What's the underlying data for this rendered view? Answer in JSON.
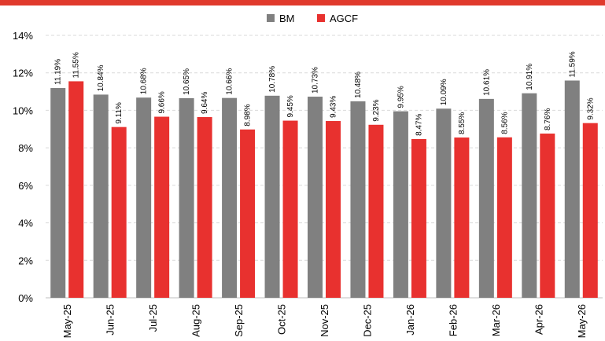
{
  "colors": {
    "top_bar": "#e03a2c",
    "bm": "#808080",
    "agcf": "#e8312f",
    "grid": "#d9d9d9",
    "axis": "#bfbfbf"
  },
  "chart_data": {
    "type": "bar",
    "title": "",
    "xlabel": "",
    "ylabel": "",
    "ylim": [
      0,
      14
    ],
    "yticks": [
      0,
      2,
      4,
      6,
      8,
      10,
      12,
      14
    ],
    "ytick_labels": [
      "0%",
      "2%",
      "4%",
      "6%",
      "8%",
      "10%",
      "12%",
      "14%"
    ],
    "grid": true,
    "legend": "top-center",
    "categories": [
      "May-25",
      "Jun-25",
      "Jul-25",
      "Aug-25",
      "Sep-25",
      "Oct-25",
      "Nov-25",
      "Dec-25",
      "Jan-26",
      "Feb-26",
      "Mar-26",
      "Apr-26",
      "May-26"
    ],
    "series": [
      {
        "name": "BM",
        "values": [
          11.19,
          10.84,
          10.68,
          10.65,
          10.66,
          10.78,
          10.73,
          10.48,
          9.95,
          10.09,
          10.61,
          10.91,
          11.59
        ],
        "labels": [
          "11.19%",
          "10.84%",
          "10.68%",
          "10.65%",
          "10.66%",
          "10.78%",
          "10.73%",
          "10.48%",
          "9.95%",
          "10.09%",
          "10.61%",
          "10.91%",
          "11.59%"
        ]
      },
      {
        "name": "AGCF",
        "values": [
          11.55,
          9.11,
          9.66,
          9.64,
          8.98,
          9.45,
          9.43,
          9.23,
          8.47,
          8.55,
          8.56,
          8.76,
          9.32
        ],
        "labels": [
          "11.55%",
          "9.11%",
          "9.66%",
          "9.64%",
          "8.98%",
          "9.45%",
          "9.43%",
          "9.23%",
          "8.47%",
          "8.55%",
          "8.56%",
          "8.76%",
          "9.32%"
        ]
      }
    ]
  }
}
